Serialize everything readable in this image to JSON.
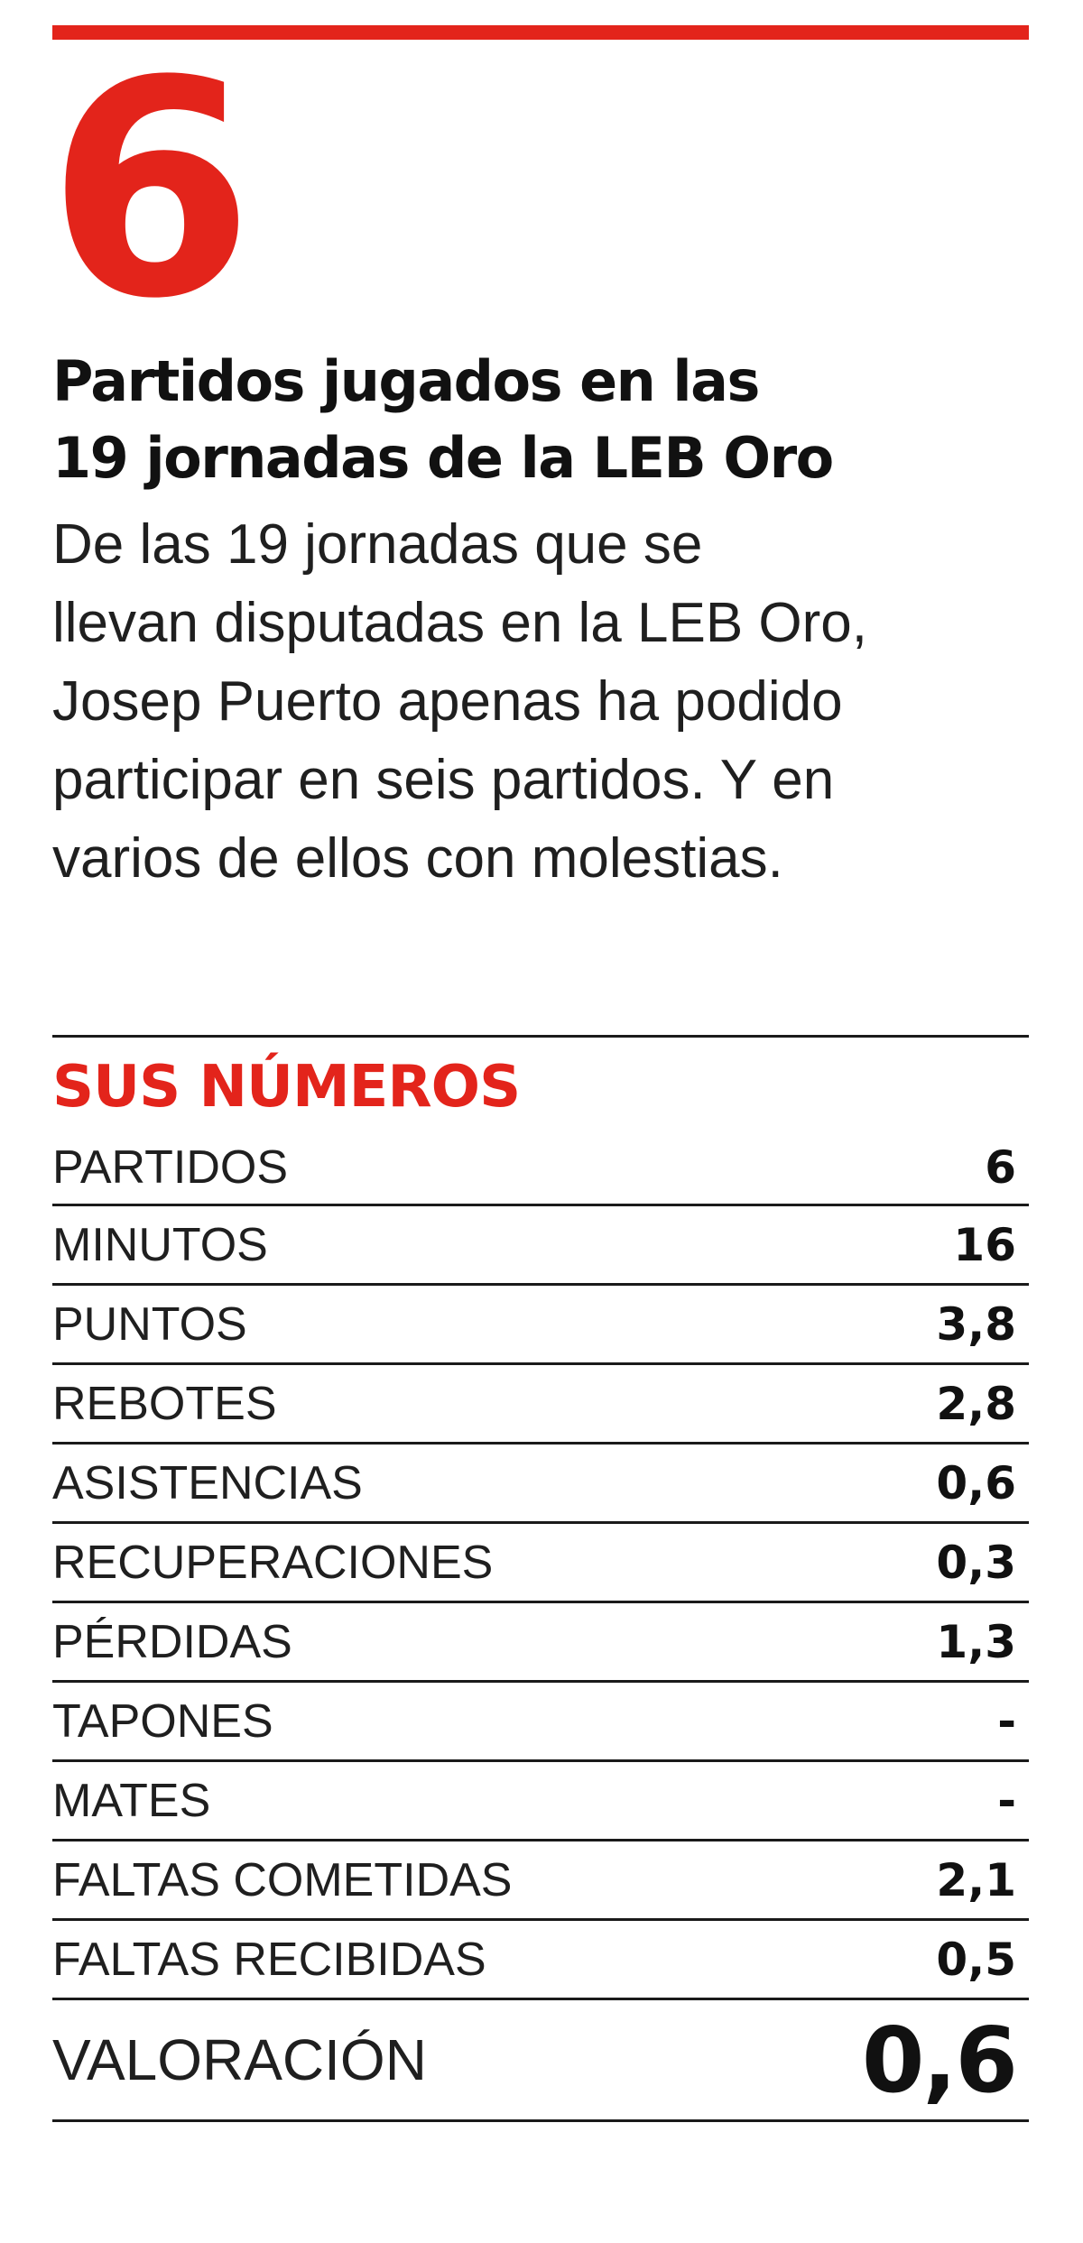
{
  "highlight": {
    "number": "6",
    "headline_line1": "Partidos jugados en las",
    "headline_line2": "19 jornadas de la LEB Oro",
    "description": "De las 19 jornadas que se\nllevan disputadas en la LEB Oro,\nJosep Puerto apenas ha podido\nparticipar en seis partidos. Y en\nvarios de ellos con molestias."
  },
  "stats": {
    "title": "SUS NÚMEROS",
    "rows": [
      {
        "label": "PARTIDOS",
        "value": "6"
      },
      {
        "label": "MINUTOS",
        "value": "16"
      },
      {
        "label": "PUNTOS",
        "value": "3,8"
      },
      {
        "label": "REBOTES",
        "value": "2,8"
      },
      {
        "label": "ASISTENCIAS",
        "value": "0,6"
      },
      {
        "label": "RECUPERACIONES",
        "value": "0,3"
      },
      {
        "label": "PÉRDIDAS",
        "value": "1,3"
      },
      {
        "label": "TAPONES",
        "value": "-"
      },
      {
        "label": "MATES",
        "value": "-"
      },
      {
        "label": "FALTAS COMETIDAS",
        "value": "2,1"
      },
      {
        "label": "FALTAS RECIBIDAS",
        "value": "0,5"
      }
    ],
    "total": {
      "label": "VALORACIÓN",
      "value": "0,6"
    }
  },
  "colors": {
    "accent": "#e3241b",
    "text": "#1f1f1f",
    "rule": "#1a1a1a"
  }
}
